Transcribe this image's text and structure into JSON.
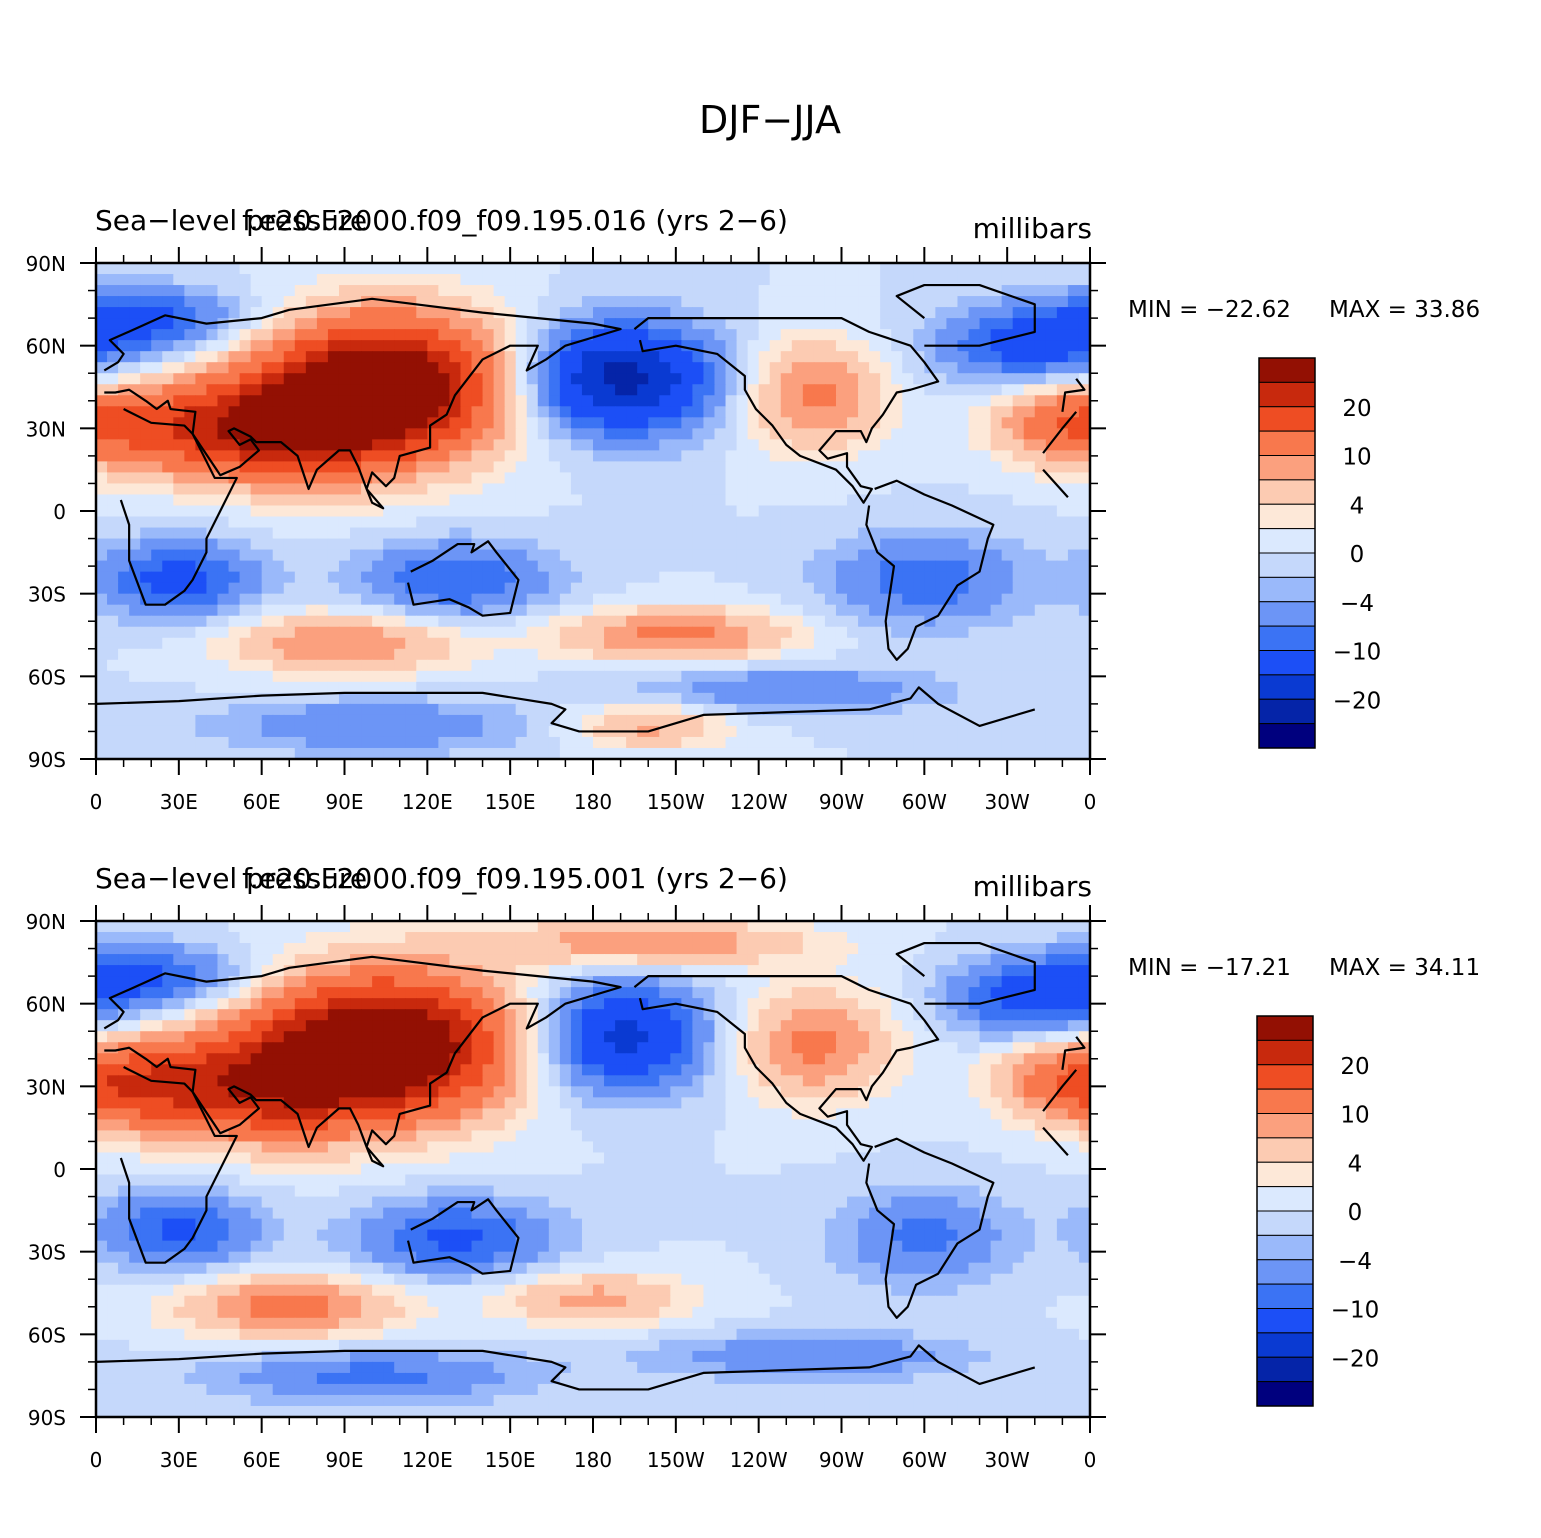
{
  "title": "DJF−JJA",
  "colors": {
    "levels": [
      "#00007e",
      "#0524a8",
      "#0a3ad2",
      "#1c4ff6",
      "#3b73f4",
      "#6c95f6",
      "#9ab9fa",
      "#c5d8fb",
      "#dbe9fe",
      "#fde8d8",
      "#fccbb2",
      "#fba07e",
      "#f8784d",
      "#ee4d23",
      "#c8290d",
      "#931003"
    ]
  },
  "chart_data": [
    {
      "type": "heatmap",
      "left_label": "Sea−level pressure",
      "center_label": "f.e20.F2000.f09_f09.195.016 (yrs 2−6)",
      "right_label": "millibars",
      "min_text": "MIN = −22.62",
      "max_text": "MAX =  33.86",
      "xticks": [
        "0",
        "30E",
        "60E",
        "90E",
        "120E",
        "150E",
        "180",
        "150W",
        "120W",
        "90W",
        "60W",
        "30W",
        "0"
      ],
      "yticks": [
        "90N",
        "60N",
        "30N",
        "0",
        "30S",
        "60S",
        "90S"
      ],
      "colorbar_labels": [
        "20",
        "10",
        "4",
        "0",
        "−4",
        "−10",
        "−20"
      ],
      "fields": [
        {
          "lon": 105,
          "lat": 45,
          "sx": 30,
          "sy": 18,
          "amp": 33
        },
        {
          "lon": 70,
          "lat": 30,
          "sx": 25,
          "sy": 14,
          "amp": 18
        },
        {
          "lon": 30,
          "lat": 30,
          "sx": 25,
          "sy": 12,
          "amp": 14
        },
        {
          "lon": 190,
          "lat": 48,
          "sx": 24,
          "sy": 14,
          "amp": -22
        },
        {
          "lon": 260,
          "lat": 42,
          "sx": 18,
          "sy": 14,
          "amp": 11
        },
        {
          "lon": 350,
          "lat": 32,
          "sx": 18,
          "sy": 10,
          "amp": 12
        },
        {
          "lon": 340,
          "lat": 60,
          "sx": 25,
          "sy": 10,
          "amp": -12
        },
        {
          "lon": 20,
          "lat": 70,
          "sx": 25,
          "sy": 8,
          "amp": -10
        },
        {
          "lon": 30,
          "lat": -25,
          "sx": 20,
          "sy": 10,
          "amp": -12
        },
        {
          "lon": 130,
          "lat": -25,
          "sx": 25,
          "sy": 10,
          "amp": -10
        },
        {
          "lon": 300,
          "lat": -25,
          "sx": 25,
          "sy": 12,
          "amp": -9
        },
        {
          "lon": 90,
          "lat": -48,
          "sx": 30,
          "sy": 8,
          "amp": 10
        },
        {
          "lon": 210,
          "lat": -45,
          "sx": 30,
          "sy": 7,
          "amp": 11
        },
        {
          "lon": 250,
          "lat": -65,
          "sx": 40,
          "sy": 6,
          "amp": -7
        },
        {
          "lon": 200,
          "lat": -78,
          "sx": 20,
          "sy": 6,
          "amp": 8
        },
        {
          "lon": 100,
          "lat": -78,
          "sx": 40,
          "sy": 7,
          "amp": -7
        }
      ]
    },
    {
      "type": "heatmap",
      "left_label": "Sea−level pressure",
      "center_label": "f.e20.F2000.f09_f09.195.001 (yrs 2−6)",
      "right_label": "millibars",
      "min_text": "MIN = −17.21",
      "max_text": "MAX =  34.11",
      "xticks": [
        "0",
        "30E",
        "60E",
        "90E",
        "120E",
        "150E",
        "180",
        "150W",
        "120W",
        "90W",
        "60W",
        "30W",
        "0"
      ],
      "yticks": [
        "90N",
        "60N",
        "30N",
        "0",
        "30S",
        "60S",
        "90S"
      ],
      "colorbar_labels": [
        "20",
        "10",
        "4",
        "0",
        "−4",
        "−10",
        "−20"
      ],
      "fields": [
        {
          "lon": 105,
          "lat": 45,
          "sx": 32,
          "sy": 18,
          "amp": 34
        },
        {
          "lon": 60,
          "lat": 30,
          "sx": 28,
          "sy": 14,
          "amp": 18
        },
        {
          "lon": 20,
          "lat": 30,
          "sx": 20,
          "sy": 12,
          "amp": 12
        },
        {
          "lon": 190,
          "lat": 48,
          "sx": 22,
          "sy": 14,
          "amp": -17
        },
        {
          "lon": 260,
          "lat": 45,
          "sx": 20,
          "sy": 14,
          "amp": 11
        },
        {
          "lon": 350,
          "lat": 32,
          "sx": 18,
          "sy": 10,
          "amp": 12
        },
        {
          "lon": 200,
          "lat": 82,
          "sx": 40,
          "sy": 6,
          "amp": 10
        },
        {
          "lon": 340,
          "lat": 62,
          "sx": 22,
          "sy": 10,
          "amp": -12
        },
        {
          "lon": 20,
          "lat": 70,
          "sx": 25,
          "sy": 8,
          "amp": -10
        },
        {
          "lon": 30,
          "lat": -22,
          "sx": 20,
          "sy": 10,
          "amp": -11
        },
        {
          "lon": 130,
          "lat": -25,
          "sx": 25,
          "sy": 10,
          "amp": -11
        },
        {
          "lon": 300,
          "lat": -25,
          "sx": 22,
          "sy": 12,
          "amp": -8
        },
        {
          "lon": 70,
          "lat": -50,
          "sx": 28,
          "sy": 8,
          "amp": 12
        },
        {
          "lon": 180,
          "lat": -47,
          "sx": 25,
          "sy": 7,
          "amp": 8
        },
        {
          "lon": 260,
          "lat": -68,
          "sx": 40,
          "sy": 6,
          "amp": -7
        },
        {
          "lon": 100,
          "lat": -75,
          "sx": 40,
          "sy": 7,
          "amp": -8
        }
      ]
    }
  ]
}
